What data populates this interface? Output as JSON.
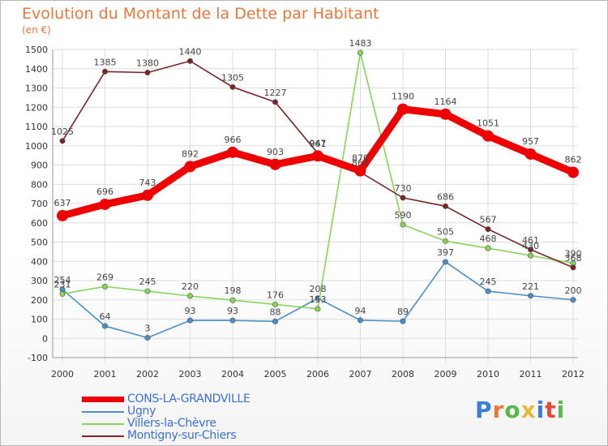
{
  "title": "Evolution du Montant de la Dette par Habitant",
  "unit": "(en €)",
  "logo": {
    "text": "Proxiti",
    "colors": [
      "#3b7dd8",
      "#e8783c",
      "#5ab84a",
      "#e8b838",
      "#3b7dd8",
      "#e84838",
      "#5ab84a"
    ]
  },
  "chart_data": {
    "type": "line",
    "categories": [
      "2000",
      "2001",
      "2002",
      "2003",
      "2004",
      "2005",
      "2006",
      "2007",
      "2008",
      "2009",
      "2010",
      "2011",
      "2012"
    ],
    "ylim": [
      -100,
      1500
    ],
    "yticks": [
      -100,
      0,
      100,
      200,
      300,
      400,
      500,
      600,
      700,
      800,
      900,
      1000,
      1100,
      1200,
      1300,
      1400,
      1500
    ],
    "grid": true,
    "legend_position": "bottom-left",
    "series": [
      {
        "name": "CONS-LA-GRANDVILLE",
        "color": "#ee0000",
        "bold": true,
        "values": [
          637,
          696,
          743,
          892,
          966,
          903,
          947,
          870,
          1190,
          1164,
          1051,
          957,
          862
        ]
      },
      {
        "name": "Ugny",
        "color": "#4a8ec8",
        "bold": false,
        "values": [
          254,
          64,
          3,
          93,
          93,
          88,
          208,
          94,
          89,
          397,
          245,
          221,
          200
        ]
      },
      {
        "name": "Villers-la-Chèvre",
        "color": "#86d45a",
        "bold": false,
        "values": [
          231,
          269,
          245,
          220,
          198,
          176,
          153,
          1483,
          590,
          505,
          468,
          430,
          390
        ]
      },
      {
        "name": "Montigny-sur-Chiers",
        "color": "#7a2424",
        "bold": false,
        "values": [
          1025,
          1385,
          1380,
          1440,
          1305,
          1227,
          961,
          863,
          730,
          686,
          567,
          461,
          368
        ]
      }
    ]
  }
}
